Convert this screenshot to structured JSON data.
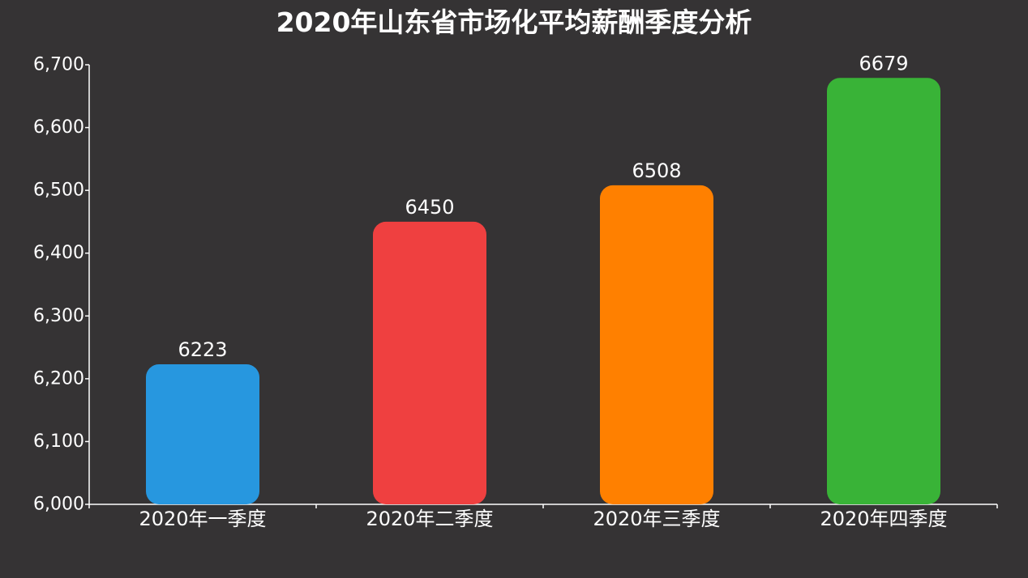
{
  "chart_data": {
    "type": "bar",
    "title": "2020年山东省市场化平均薪酬季度分析",
    "categories": [
      "2020年一季度",
      "2020年二季度",
      "2020年三季度",
      "2020年四季度"
    ],
    "values": [
      6223,
      6450,
      6508,
      6679
    ],
    "value_labels": [
      "6223",
      "6450",
      "6508",
      "6679"
    ],
    "colors": [
      "#2797df",
      "#ef4040",
      "#ff8000",
      "#39b337"
    ],
    "ylim": [
      6000,
      6700
    ],
    "yticks": [
      6000,
      6100,
      6200,
      6300,
      6400,
      6500,
      6600,
      6700
    ],
    "ytick_labels": [
      "6,000",
      "6,100",
      "6,200",
      "6,300",
      "6,400",
      "6,500",
      "6,600",
      "6,700"
    ],
    "xlabel": "",
    "ylabel": "",
    "grid": false,
    "legend": "none"
  },
  "colors": {
    "background": "#353334",
    "axis": "#ffffff",
    "text": "#ffffff"
  }
}
